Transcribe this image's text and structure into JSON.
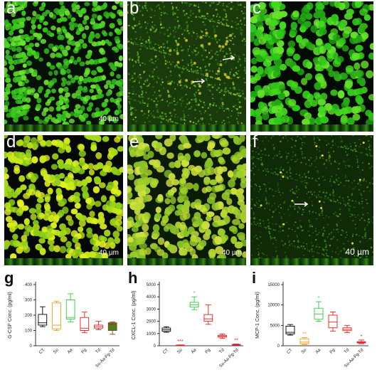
{
  "figure": {
    "panels": [
      {
        "label": "a",
        "scale": "40 µm"
      },
      {
        "label": "b",
        "scale": ""
      },
      {
        "label": "c",
        "scale": ""
      },
      {
        "label": "d",
        "scale": "40 µm"
      },
      {
        "label": "e",
        "scale": "40 µm"
      },
      {
        "label": "f",
        "scale": "40 µm"
      }
    ],
    "colors": {
      "cells": "#39c81e",
      "bright": "#d8f000",
      "red": "#e02020",
      "black": "#000000"
    }
  },
  "chart_data": [
    {
      "type": "box",
      "label": "g",
      "ylabel": "G-CSF Conc. (pg/ml)",
      "ylim": [
        0,
        400
      ],
      "yticks": [
        0,
        100,
        200,
        300,
        400
      ],
      "categories": [
        "CT",
        "So",
        "Aa",
        "Pg",
        "Td",
        "So-Aa-Pg-Td"
      ],
      "colors": [
        "#000000",
        "#f39c12",
        "#2ecc40",
        "#e02020",
        "#e02020",
        "#8b3a1a"
      ],
      "fills": [
        "none",
        "none",
        "none",
        "none",
        "none",
        "#4f7f1e"
      ],
      "boxes": [
        {
          "min": 125,
          "q1": 135,
          "median": 150,
          "q3": 205,
          "max": 255
        },
        {
          "min": 100,
          "q1": 110,
          "median": 135,
          "q3": 280,
          "max": 290
        },
        {
          "min": 155,
          "q1": 175,
          "median": 185,
          "q3": 300,
          "max": 340
        },
        {
          "min": 85,
          "q1": 100,
          "median": 115,
          "q3": 185,
          "max": 220
        },
        {
          "min": 105,
          "q1": 115,
          "median": 125,
          "q3": 135,
          "max": 160
        },
        {
          "min": 75,
          "q1": 100,
          "median": 140,
          "q3": 150,
          "max": 155
        }
      ],
      "annotations": [
        "",
        "",
        "",
        "",
        "",
        ""
      ]
    },
    {
      "type": "box",
      "label": "h",
      "ylabel": "CXCL-1 Conc. (pg/ml)",
      "ylim": [
        0,
        5000
      ],
      "yticks": [
        0,
        1000,
        2000,
        3000,
        4000,
        5000
      ],
      "categories": [
        "CT",
        "So",
        "Aa",
        "Pg",
        "Td",
        "So-Aa-Pg-Td"
      ],
      "colors": [
        "#000000",
        "#e02020",
        "#2ecc40",
        "#e02020",
        "#e02020",
        "#e02020"
      ],
      "fills": [
        "none",
        "none",
        "none",
        "none",
        "none",
        "none"
      ],
      "boxes": [
        {
          "min": 1100,
          "q1": 1180,
          "median": 1300,
          "q3": 1450,
          "max": 1550
        },
        {
          "min": 20,
          "q1": 30,
          "median": 40,
          "q3": 55,
          "max": 70
        },
        {
          "min": 2950,
          "q1": 3150,
          "median": 3350,
          "q3": 3550,
          "max": 4000
        },
        {
          "min": 1750,
          "q1": 2000,
          "median": 2200,
          "q3": 2550,
          "max": 3350
        },
        {
          "min": 600,
          "q1": 700,
          "median": 780,
          "q3": 860,
          "max": 950
        },
        {
          "min": 50,
          "q1": 70,
          "median": 90,
          "q3": 110,
          "max": 140
        }
      ],
      "annotations": [
        "",
        "***",
        "*",
        "",
        "",
        "**"
      ]
    },
    {
      "type": "box",
      "label": "i",
      "ylabel": "MCP-1 Conc. (pg/ml)",
      "ylim": [
        0,
        15000
      ],
      "yticks": [
        0,
        5000,
        10000,
        15000
      ],
      "categories": [
        "CT",
        "So",
        "Aa",
        "Pg",
        "Td",
        "So-Aa-Pg-Td"
      ],
      "colors": [
        "#000000",
        "#f39c12",
        "#2ecc40",
        "#e02020",
        "#e02020",
        "#e02020"
      ],
      "fills": [
        "none",
        "none",
        "none",
        "none",
        "none",
        "none"
      ],
      "boxes": [
        {
          "min": 2600,
          "q1": 2900,
          "median": 3300,
          "q3": 4800,
          "max": 5200
        },
        {
          "min": 300,
          "q1": 500,
          "median": 900,
          "q3": 1700,
          "max": 2000
        },
        {
          "min": 6000,
          "q1": 6500,
          "median": 7800,
          "q3": 9200,
          "max": 10800
        },
        {
          "min": 3600,
          "q1": 4400,
          "median": 5800,
          "q3": 7500,
          "max": 8300
        },
        {
          "min": 3200,
          "q1": 3700,
          "median": 4000,
          "q3": 4400,
          "max": 5000
        },
        {
          "min": 500,
          "q1": 700,
          "median": 850,
          "q3": 1000,
          "max": 1400
        }
      ],
      "annotations": [
        "",
        "**",
        "*",
        "",
        "",
        "*"
      ]
    }
  ]
}
